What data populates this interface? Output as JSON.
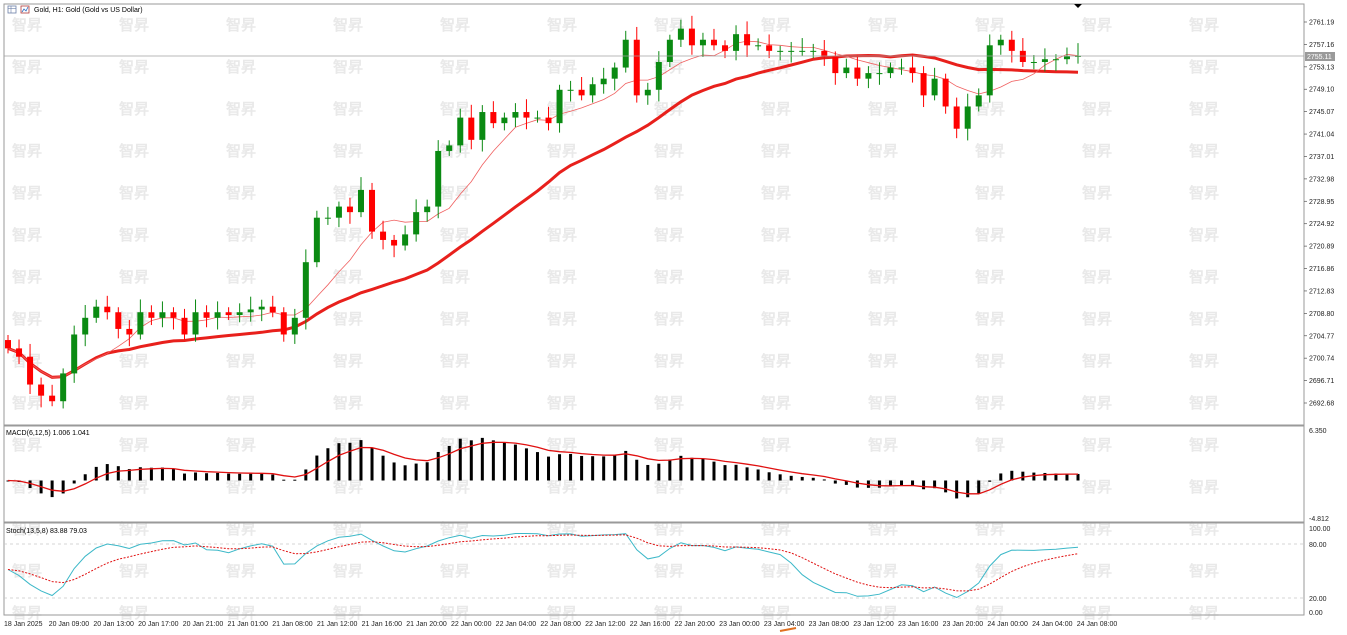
{
  "window": {
    "title": "Gold, H1:  Gold (Gold vs US Dollar)",
    "icons": [
      "chart-window-icon",
      "chart-settings-icon"
    ]
  },
  "colors": {
    "bull": "#0a8a12",
    "bear": "#ff0000",
    "ma_slow": "#e8201c",
    "ma_fast": "#f06060",
    "macd_signal": "#e01010",
    "stoch_main": "#3cb8c8",
    "stoch_signal": "#e01010",
    "grid": "#d7d7d7",
    "price_line": "#a0a0a0"
  },
  "price_panel": {
    "y_ticks": [
      "2761.19",
      "2757.16",
      "2753.13",
      "2749.10",
      "2745.07",
      "2741.04",
      "2737.01",
      "2732.98",
      "2728.95",
      "2724.92",
      "2720.89",
      "2716.86",
      "2712.83",
      "2708.80",
      "2704.77",
      "2700.74",
      "2696.71",
      "2692.68"
    ],
    "current_price_label": "2755.11"
  },
  "macd_panel": {
    "label": "MACD(6,12,5) 1.006 1.041",
    "y_top": "6.350",
    "y_bottom": "-4.812"
  },
  "stoch_panel": {
    "label": "Stoch(13,5,8) 83.88 79.03",
    "y_ticks": [
      "100.00",
      "80.00",
      "20.00",
      "0.00"
    ]
  },
  "x_axis": {
    "labels": [
      "18 Jan 2025",
      "20 Jan 09:00",
      "20 Jan 13:00",
      "20 Jan 17:00",
      "20 Jan 21:00",
      "21 Jan 01:00",
      "21 Jan 08:00",
      "21 Jan 12:00",
      "21 Jan 16:00",
      "21 Jan 20:00",
      "22 Jan 00:00",
      "22 Jan 04:00",
      "22 Jan 08:00",
      "22 Jan 12:00",
      "22 Jan 16:00",
      "22 Jan 20:00",
      "23 Jan 00:00",
      "23 Jan 04:00",
      "23 Jan 08:00",
      "23 Jan 12:00",
      "23 Jan 16:00",
      "23 Jan 20:00",
      "24 Jan 00:00",
      "24 Jan 04:00",
      "24 Jan 08:00"
    ]
  },
  "watermark": "智昇",
  "chart_data": {
    "type": "candlestick",
    "series_ohlc_close": [
      2702.5,
      2701.0,
      2696.0,
      2694.0,
      2693.0,
      2698.0,
      2705.0,
      2708.0,
      2710.0,
      2709.0,
      2706.0,
      2705.0,
      2709.0,
      2708.0,
      2709.0,
      2708.0,
      2705.0,
      2709.0,
      2708.0,
      2709.0,
      2708.5,
      2709.0,
      2709.5,
      2710.0,
      2709.0,
      2705.0,
      2708.0,
      2718.0,
      2726.0,
      2726.0,
      2728.0,
      2727.0,
      2731.0,
      2723.5,
      2722.0,
      2721.0,
      2723.0,
      2727.0,
      2728.0,
      2738.0,
      2739.0,
      2744.0,
      2740.0,
      2745.0,
      2743.0,
      2744.0,
      2745.0,
      2744.0,
      2744.0,
      2743.0,
      2749.0,
      2749.0,
      2748.0,
      2750.0,
      2751.0,
      2753.0,
      2758.0,
      2748.0,
      2749.0,
      2754.0,
      2758.0,
      2760.0,
      2757.0,
      2758.0,
      2757.0,
      2756.0,
      2759.0,
      2757.0,
      2757.0,
      2756.0,
      2756.0,
      2756.0,
      2756.0,
      2756.0,
      2755.0,
      2752.0,
      2753.0,
      2751.0,
      2752.0,
      2752.0,
      2753.0,
      2753.0,
      2752.0,
      2748.0,
      2751.0,
      2746.0,
      2742.0,
      2746.0,
      2748.0,
      2757.0,
      2758.0,
      2756.0,
      2754.0,
      2754.0,
      2754.5,
      2754.5,
      2755.0,
      2755.1
    ],
    "ma_slow_note": "thick red moving average",
    "ma_fast_note": "thin red moving average",
    "macd": {
      "params": "6,12,5",
      "main": 1.006,
      "signal": 1.041,
      "ylim": [
        -4.812,
        6.35
      ]
    },
    "stochastic": {
      "params": "13,5,8",
      "main": 83.88,
      "signal": 79.03,
      "ylim": [
        0,
        100
      ],
      "levels": [
        20,
        80
      ]
    }
  }
}
